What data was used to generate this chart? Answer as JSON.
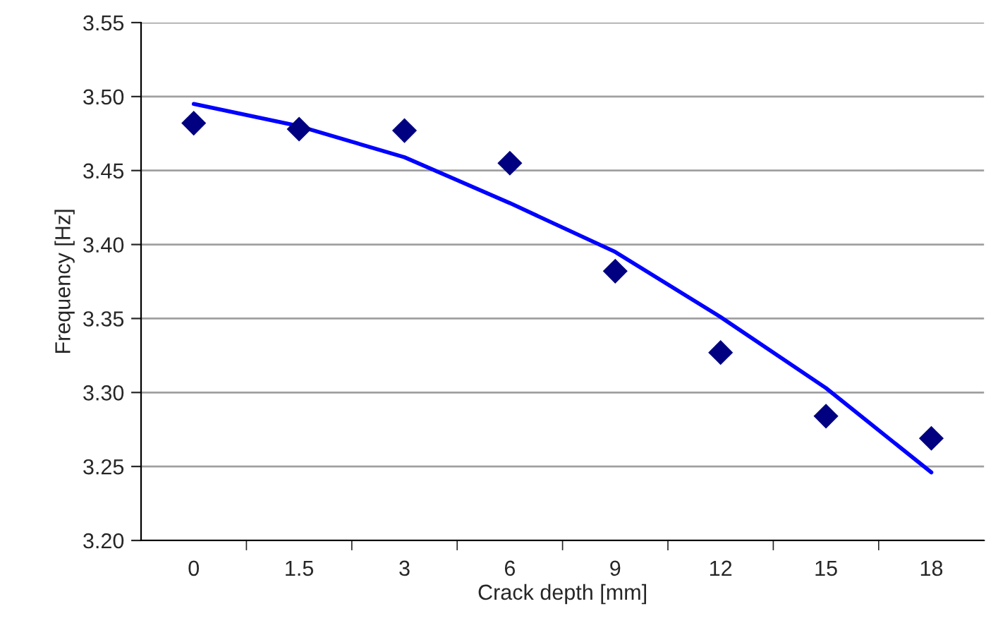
{
  "chart_data": {
    "type": "scatter",
    "xlabel": "Crack depth [mm]",
    "ylabel": "Frequency [Hz]",
    "categories": [
      "0",
      "1.5",
      "3",
      "6",
      "9",
      "12",
      "15",
      "18"
    ],
    "series": [
      {
        "color": "#000080",
        "marker": "diamond",
        "values": [
          3.482,
          3.478,
          3.477,
          3.455,
          3.382,
          3.327,
          3.284,
          3.269
        ]
      },
      {
        "type": "line",
        "color": "#0000ff",
        "line_style": "solid",
        "values": [
          3.495,
          3.48,
          3.459,
          3.428,
          3.395,
          3.351,
          3.303,
          3.246
        ]
      }
    ],
    "ylim": [
      3.2,
      3.55
    ],
    "yticks": [
      {
        "value": 3.2,
        "label": "3.20"
      },
      {
        "value": 3.25,
        "label": "3.25"
      },
      {
        "value": 3.3,
        "label": "3.30"
      },
      {
        "value": 3.35,
        "label": "3.35"
      },
      {
        "value": 3.4,
        "label": "3.40"
      },
      {
        "value": 3.45,
        "label": "3.45"
      },
      {
        "value": 3.5,
        "label": "3.50"
      },
      {
        "value": 3.55,
        "label": "3.55"
      }
    ],
    "grid": "y",
    "legend": false
  }
}
